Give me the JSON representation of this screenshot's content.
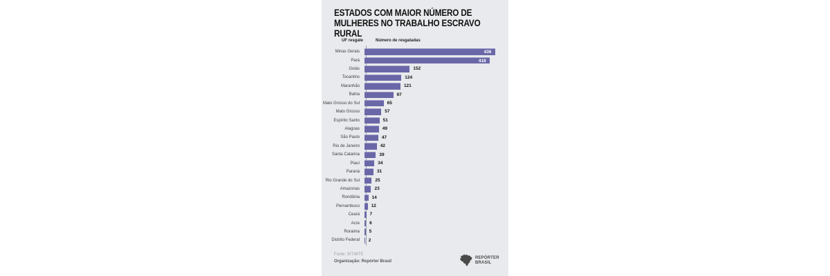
{
  "title": [
    "ESTADOS COM MAIOR NÚMERO DE",
    "MULHERES NO TRABALHO ESCRAVO RURAL"
  ],
  "columns": {
    "uf": "UF resgate",
    "count": "Número de resgatadas"
  },
  "chart_data": {
    "type": "bar",
    "orientation": "horizontal",
    "title": "ESTADOS COM MAIOR NÚMERO DE MULHERES NO TRABALHO ESCRAVO RURAL",
    "xlabel": "Número de resgatadas",
    "ylabel": "UF resgate",
    "categories": [
      "Minas Gerais",
      "Pará",
      "Goiás",
      "Tocantins",
      "Maranhão",
      "Bahia",
      "Mato Grosso do Sul",
      "Mato Grosso",
      "Espírito Santo",
      "Alagoas",
      "São Paulo",
      "Rio de Janeiro",
      "Santa Catarina",
      "Piauí",
      "Paraná",
      "Rio Grande do Sul",
      "Amazonas",
      "Rondônia",
      "Pernambuco",
      "Ceará",
      "Acre",
      "Roraima",
      "Distrito Federal"
    ],
    "values": [
      436,
      418,
      152,
      124,
      121,
      97,
      65,
      57,
      51,
      49,
      47,
      42,
      39,
      34,
      31,
      25,
      23,
      14,
      12,
      7,
      6,
      5,
      2
    ],
    "max_value": 436,
    "inside_label_min": 400,
    "bar_color": "#6a67a8",
    "value_label_color": "#111111",
    "inside_label_color": "#ffffff",
    "grid": false,
    "legend": false
  },
  "footer": {
    "fonte": "Fonte: SIT/MTE",
    "organizacao": "Organização: Repórter Brasil"
  },
  "logo": {
    "icon": "brazil-map-icon",
    "icon_color": "#4a4a4a",
    "text": [
      "REPÓRTER",
      "BRASIL"
    ]
  },
  "colors": {
    "page_background": "#ffffff",
    "panel_background": "#e8eaed",
    "axis_line": "#9aa0aa"
  }
}
